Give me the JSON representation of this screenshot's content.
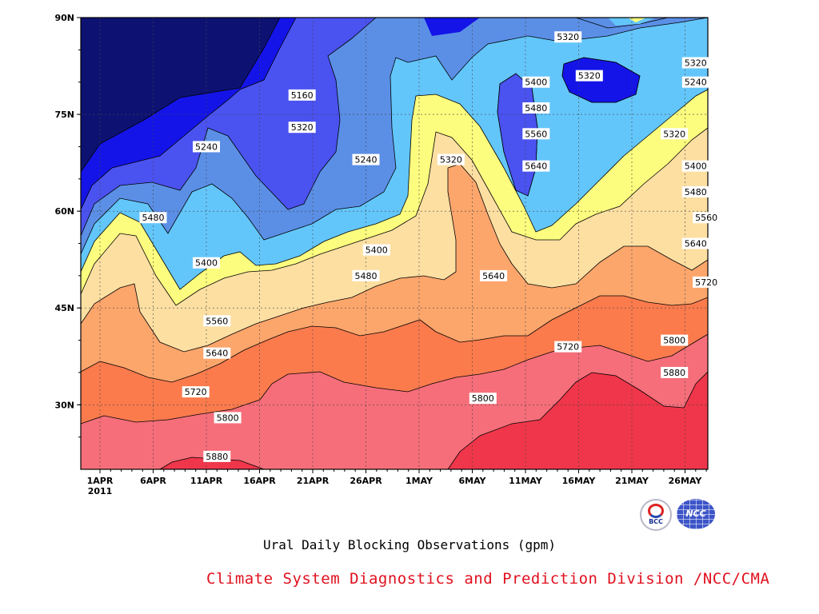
{
  "chart_data": {
    "type": "contour",
    "title": "Ural Daily Blocking Observations (gpm)",
    "source": "Climate System Diagnostics and Prediction Division /NCC/CMA",
    "x_ticks": [
      "1APR",
      "6APR",
      "11APR",
      "16APR",
      "21APR",
      "26APR",
      "1MAY",
      "6MAY",
      "11MAY",
      "16MAY",
      "21MAY",
      "26MAY"
    ],
    "x_year": "2011",
    "y_ticks": [
      "30N",
      "45N",
      "60N",
      "75N",
      "90N"
    ],
    "y_tick_values": [
      30,
      45,
      60,
      75,
      90
    ],
    "x_range_days": [
      0,
      57
    ],
    "y_range_deg": [
      20,
      90
    ],
    "grid": "dotted",
    "levels": [
      {
        "min": null,
        "max": 5160,
        "color": "#0d1272"
      },
      {
        "min": 5160,
        "max": 5240,
        "color": "#1414e8"
      },
      {
        "min": 5240,
        "max": 5320,
        "color": "#4a52f0"
      },
      {
        "min": 5320,
        "max": 5400,
        "color": "#5b8fe6"
      },
      {
        "min": 5400,
        "max": 5480,
        "color": "#63c6fb"
      },
      {
        "min": 5480,
        "max": 5560,
        "color": "#fcfc7e"
      },
      {
        "min": 5560,
        "max": 5640,
        "color": "#fddfa2"
      },
      {
        "min": 5640,
        "max": 5720,
        "color": "#fca66c"
      },
      {
        "min": 5720,
        "max": 5800,
        "color": "#fb7b4d"
      },
      {
        "min": 5800,
        "max": 5880,
        "color": "#f56e7a"
      },
      {
        "min": 5880,
        "max": null,
        "color": "#f0364a"
      }
    ],
    "contour_labels": [
      {
        "text": "5160",
        "day": 19,
        "lat": 78
      },
      {
        "text": "5240",
        "day": 10,
        "lat": 70
      },
      {
        "text": "5320",
        "day": 19,
        "lat": 73
      },
      {
        "text": "5240",
        "day": 25,
        "lat": 68
      },
      {
        "text": "5320",
        "day": 33,
        "lat": 68
      },
      {
        "text": "5320",
        "day": 44,
        "lat": 87
      },
      {
        "text": "5320",
        "day": 46,
        "lat": 81
      },
      {
        "text": "5400",
        "day": 41,
        "lat": 80
      },
      {
        "text": "5480",
        "day": 41,
        "lat": 76
      },
      {
        "text": "5560",
        "day": 41,
        "lat": 72
      },
      {
        "text": "5640",
        "day": 41,
        "lat": 67
      },
      {
        "text": "5320",
        "day": 56,
        "lat": 83
      },
      {
        "text": "5240",
        "day": 56,
        "lat": 80
      },
      {
        "text": "5320",
        "day": 54,
        "lat": 72
      },
      {
        "text": "5400",
        "day": 56,
        "lat": 67
      },
      {
        "text": "5480",
        "day": 56,
        "lat": 63
      },
      {
        "text": "5560",
        "day": 57,
        "lat": 59
      },
      {
        "text": "5640",
        "day": 56,
        "lat": 55
      },
      {
        "text": "5720",
        "day": 57,
        "lat": 49
      },
      {
        "text": "5480",
        "day": 5,
        "lat": 59
      },
      {
        "text": "5400",
        "day": 10,
        "lat": 52
      },
      {
        "text": "5400",
        "day": 26,
        "lat": 54
      },
      {
        "text": "5480",
        "day": 25,
        "lat": 50
      },
      {
        "text": "5640",
        "day": 37,
        "lat": 50
      },
      {
        "text": "5560",
        "day": 11,
        "lat": 43
      },
      {
        "text": "5640",
        "day": 11,
        "lat": 38
      },
      {
        "text": "5720",
        "day": 9,
        "lat": 32
      },
      {
        "text": "5720",
        "day": 44,
        "lat": 39
      },
      {
        "text": "5800",
        "day": 12,
        "lat": 28
      },
      {
        "text": "5800",
        "day": 36,
        "lat": 31
      },
      {
        "text": "5800",
        "day": 54,
        "lat": 40
      },
      {
        "text": "5880",
        "day": 54,
        "lat": 35
      },
      {
        "text": "5880",
        "day": 11,
        "lat": 22
      }
    ]
  },
  "logos": {
    "bcc_text": "BCC",
    "ncc_text": "NCC"
  }
}
